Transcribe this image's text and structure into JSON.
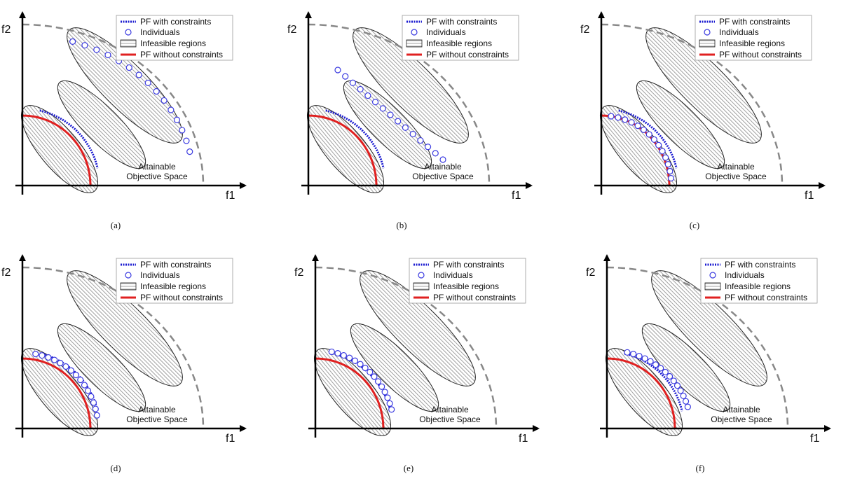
{
  "panels": [
    {
      "caption": "(a)",
      "x_label": "f1",
      "y_label": "f2",
      "region_label": [
        "Attainable",
        "Objective Space"
      ],
      "legend": [
        "PF with constraints",
        "Individuals",
        "Infeasible regions",
        "PF without constraints"
      ]
    },
    {
      "caption": "(b)",
      "x_label": "f1",
      "y_label": "f2",
      "region_label": [
        "Attainable",
        "Objective Space"
      ],
      "legend": [
        "PF with constraints",
        "Individuals",
        "Infeasible regions",
        "PF without constraints"
      ]
    },
    {
      "caption": "(c)",
      "x_label": "f1",
      "y_label": "f2",
      "region_label": [
        "Attainable",
        "Objective Space"
      ],
      "legend": [
        "PF with constraints",
        "Individuals",
        "Infeasible regions",
        "PF without constraints"
      ]
    },
    {
      "caption": "(d)",
      "x_label": "f1",
      "y_label": "f2",
      "region_label": [
        "Attainable",
        "Objective Space"
      ],
      "legend": [
        "PF with constraints",
        "Individuals",
        "Infeasible regions",
        "PF without constraints"
      ]
    },
    {
      "caption": "(e)",
      "x_label": "f1",
      "y_label": "f2",
      "region_label": [
        "Attainable",
        "Objective Space"
      ],
      "legend": [
        "PF with constraints",
        "Individuals",
        "Infeasible regions",
        "PF without constraints"
      ]
    },
    {
      "caption": "(f)",
      "x_label": "f1",
      "y_label": "f2",
      "region_label": [
        "Attainable",
        "Objective Space"
      ],
      "legend": [
        "PF with constraints",
        "Individuals",
        "Infeasible regions",
        "PF without constraints"
      ]
    }
  ]
}
